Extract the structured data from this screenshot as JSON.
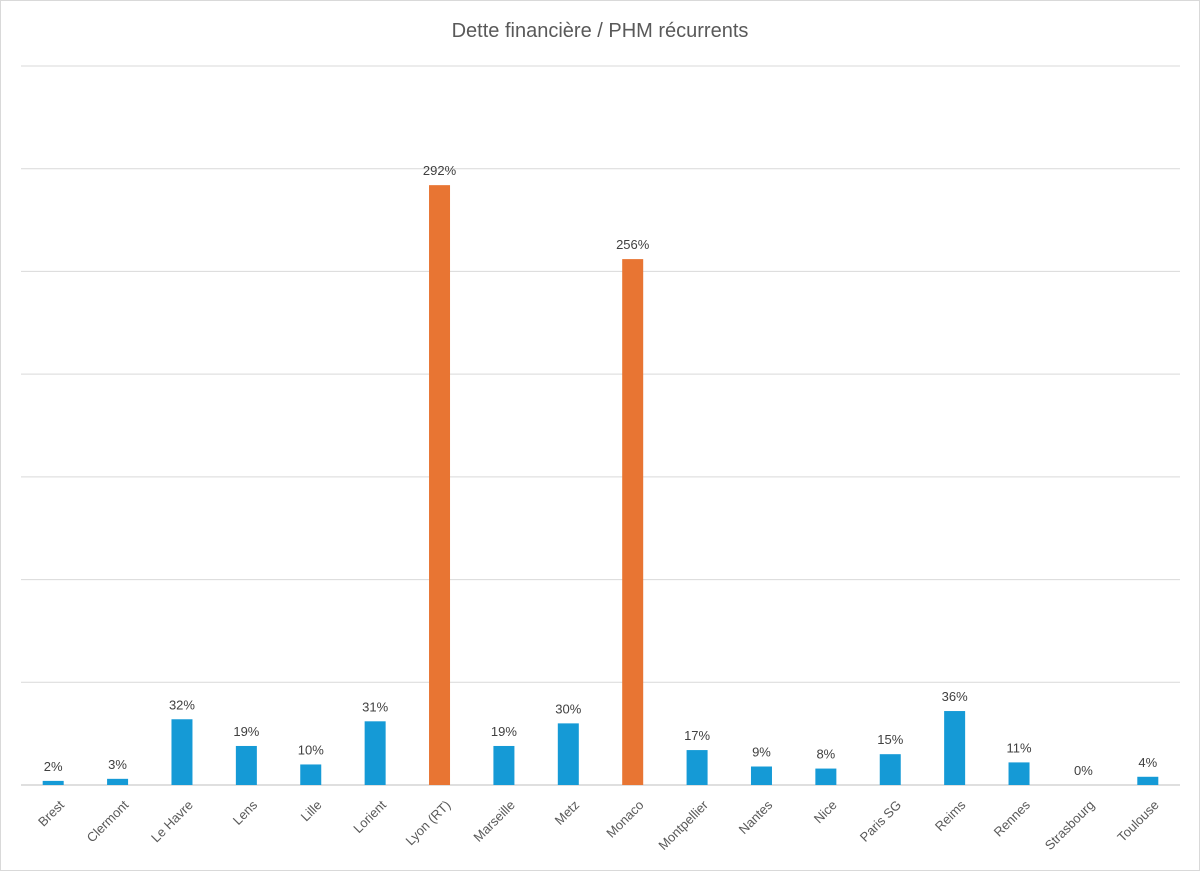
{
  "chart_data": {
    "type": "bar",
    "title": "Dette financière / PHM récurrents",
    "xlabel": "",
    "ylabel": "",
    "categories": [
      "Brest",
      "Clermont",
      "Le Havre",
      "Lens",
      "Lille",
      "Lorient",
      "Lyon (RT)",
      "Marseille",
      "Metz",
      "Monaco",
      "Montpellier",
      "Nantes",
      "Nice",
      "Paris SG",
      "Reims",
      "Rennes",
      "Strasbourg",
      "Toulouse"
    ],
    "values": [
      2,
      3,
      32,
      19,
      10,
      31,
      292,
      19,
      30,
      256,
      17,
      9,
      8,
      15,
      36,
      11,
      0,
      4
    ],
    "data_labels": [
      "2%",
      "3%",
      "32%",
      "19%",
      "10%",
      "31%",
      "292%",
      "19%",
      "30%",
      "256%",
      "17%",
      "9%",
      "8%",
      "15%",
      "36%",
      "11%",
      "0%",
      "4%"
    ],
    "unit": "%",
    "ylim": [
      0,
      350
    ],
    "grid": true,
    "legend": "none",
    "colors": {
      "default": "#159ad6",
      "highlight": "#e87533"
    },
    "highlighted_categories": [
      "Lyon (RT)",
      "Monaco"
    ]
  }
}
